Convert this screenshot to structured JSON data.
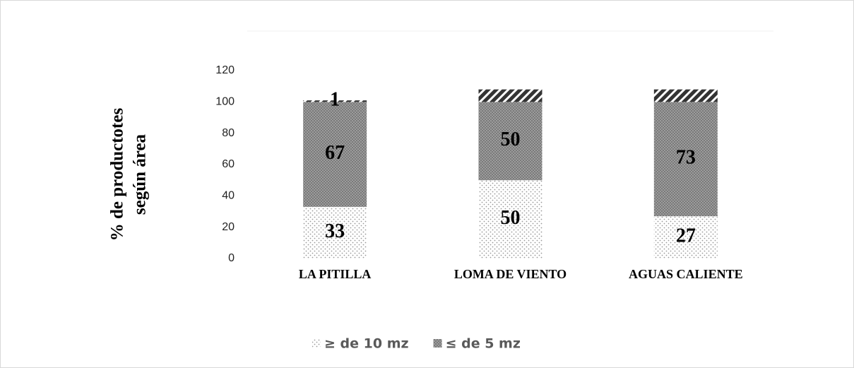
{
  "chart_data": {
    "type": "stacked_bar",
    "ylabel": [
      "% de productotes",
      "según  área"
    ],
    "categories": [
      "LA PITILLA",
      "LOMA DE VIENTO",
      "AGUAS CALIENTE"
    ],
    "series": [
      {
        "name": "≥ de 10 mz",
        "color": "#c8c8c8",
        "values": [
          33,
          50,
          27
        ]
      },
      {
        "name": "≤ de 5 mz",
        "color": "#8a8a8a",
        "values": [
          67,
          50,
          73
        ]
      },
      {
        "color": "#333333",
        "values": [
          1,
          8,
          8
        ],
        "value_labels": [
          "1",
          null,
          null
        ]
      }
    ],
    "ylim": [
      0,
      120
    ],
    "yticks": [
      0,
      20,
      40,
      60,
      80,
      100,
      120
    ],
    "legend": "bottom"
  }
}
